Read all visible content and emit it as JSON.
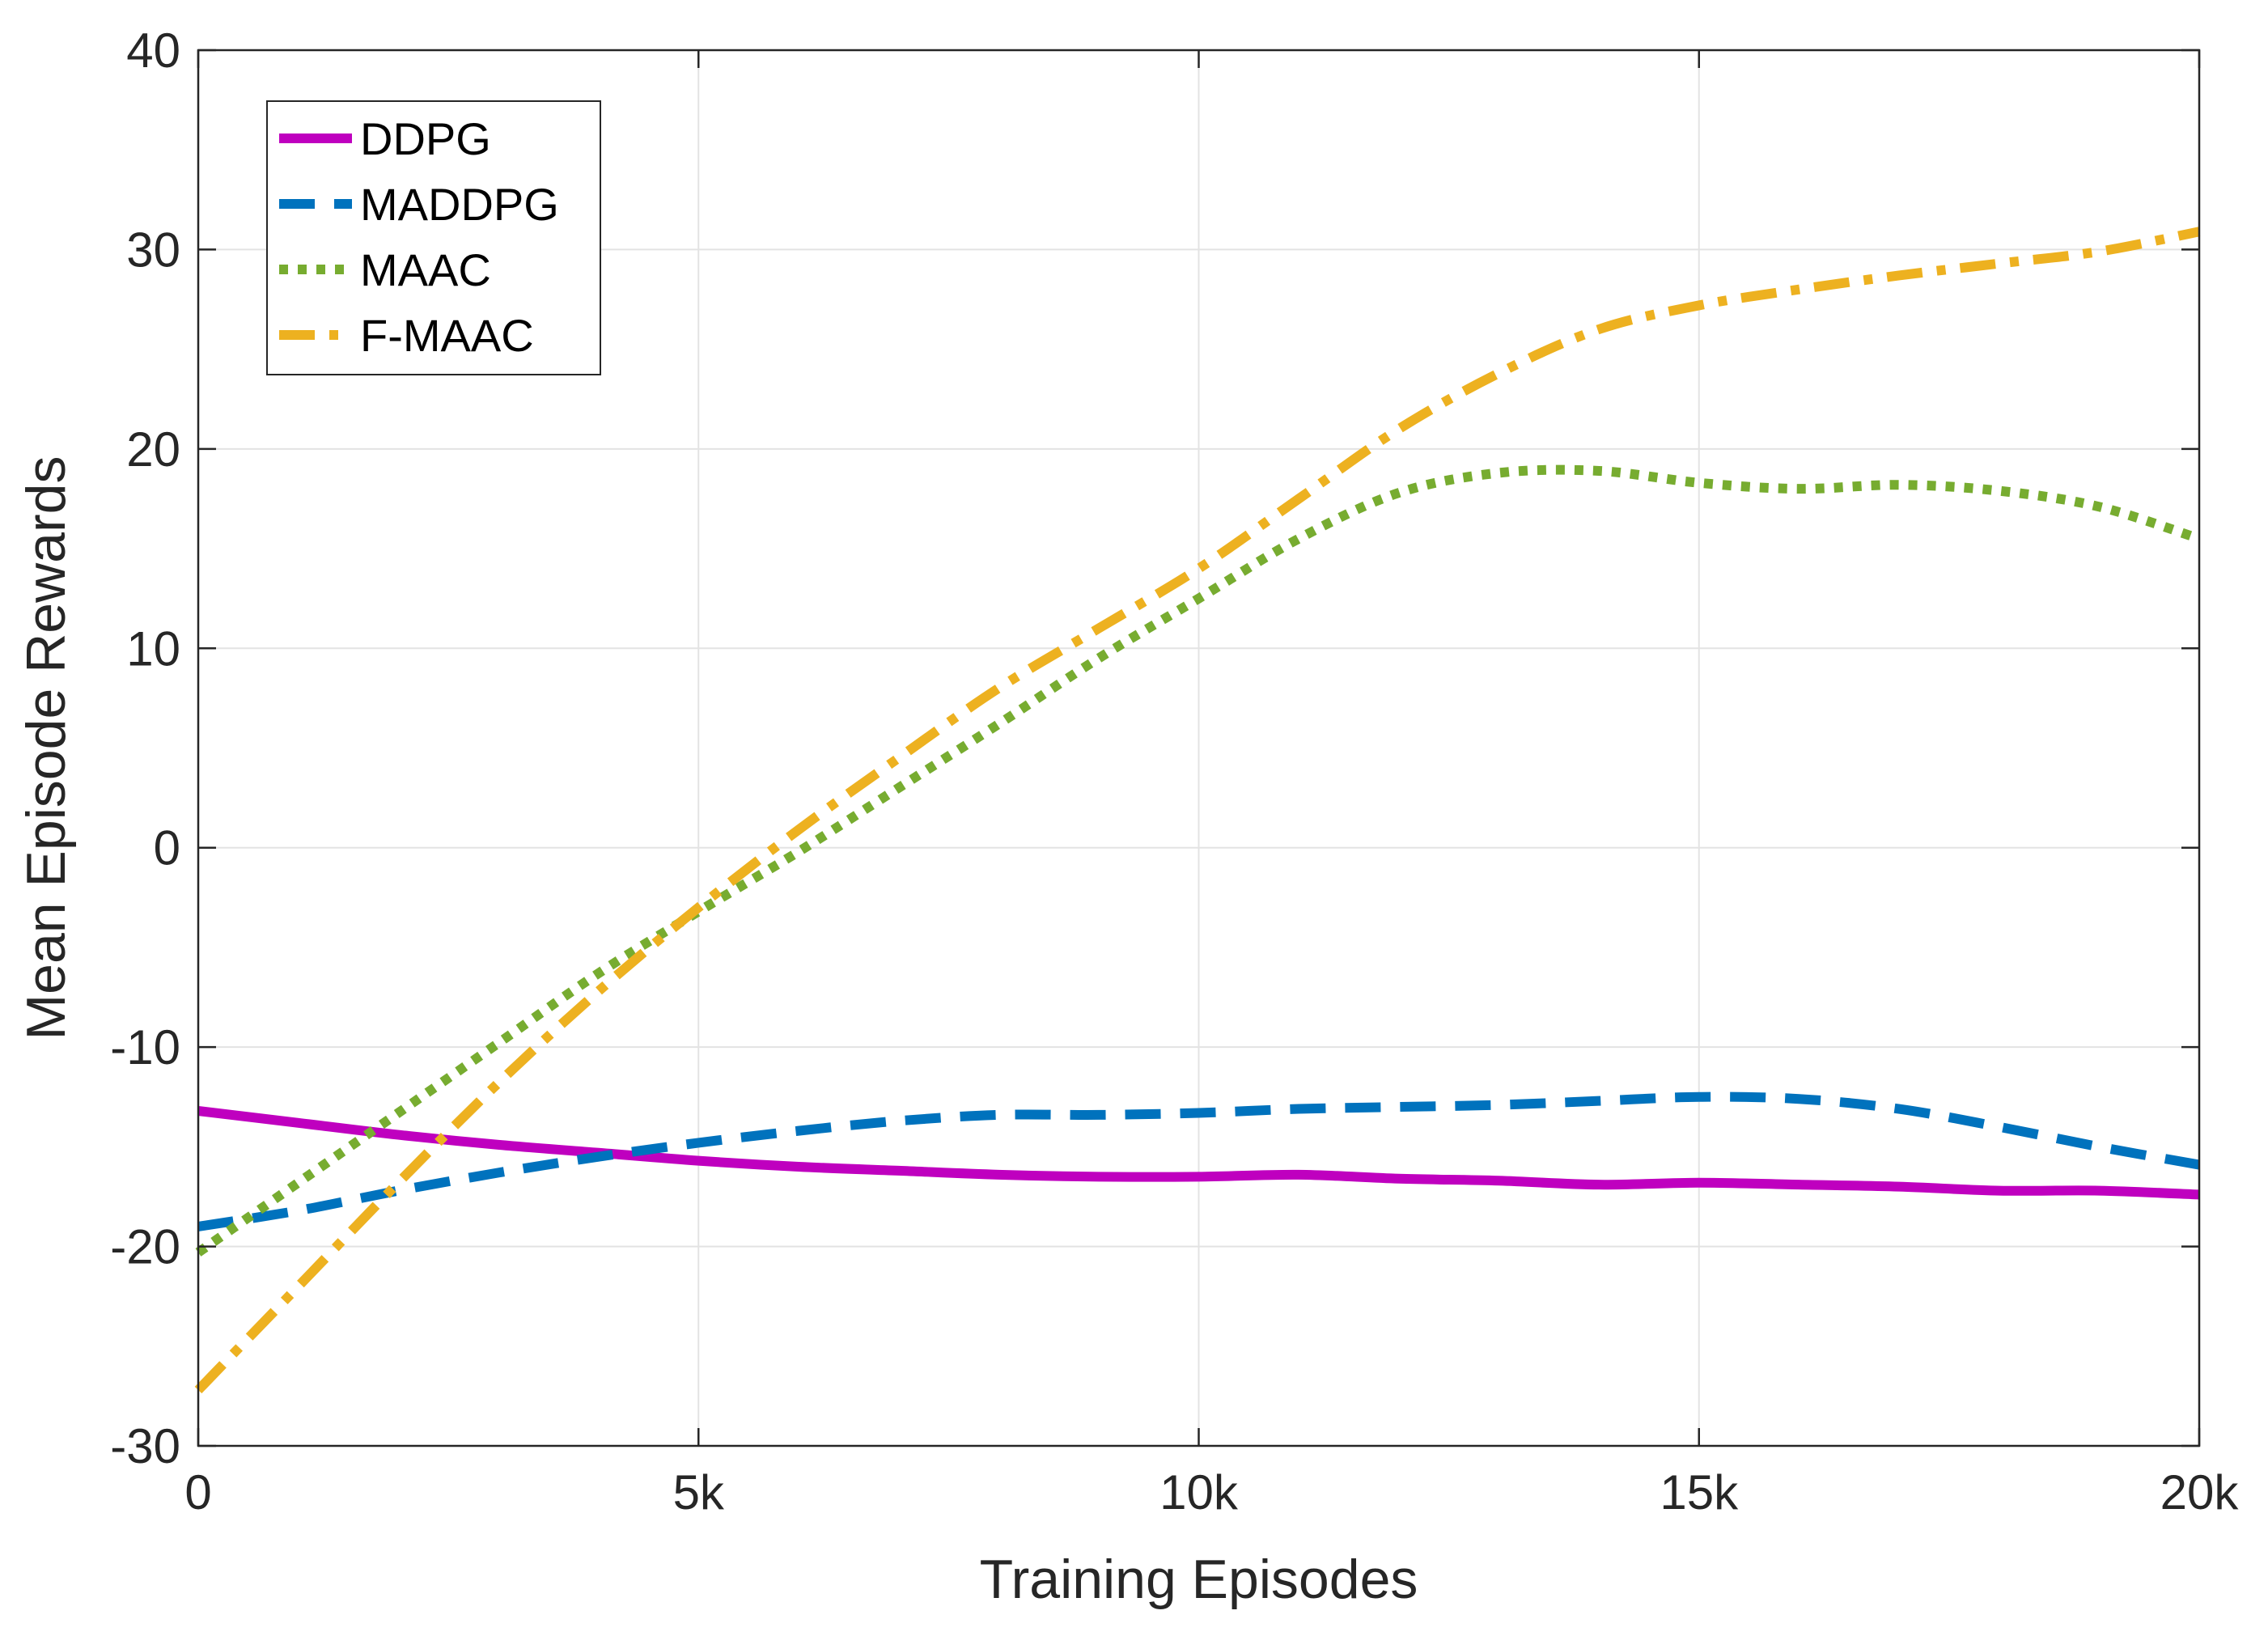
{
  "chart_data": {
    "type": "line",
    "xlabel": "Training Episodes",
    "ylabel": "Mean Episode Rewards",
    "xlim": [
      0,
      20000
    ],
    "ylim": [
      -30,
      40
    ],
    "grid": true,
    "legend_position": "top-left",
    "x_ticks": [
      0,
      5000,
      10000,
      15000,
      20000
    ],
    "x_tick_labels": [
      "0",
      "5k",
      "10k",
      "15k",
      "20k"
    ],
    "y_ticks": [
      -30,
      -20,
      -10,
      0,
      10,
      20,
      30,
      40
    ],
    "y_tick_labels": [
      "-30",
      "-20",
      "-10",
      "0",
      "10",
      "20",
      "30",
      "40"
    ],
    "x": [
      0,
      1000,
      2000,
      3000,
      4000,
      5000,
      6000,
      7000,
      8000,
      9000,
      10000,
      11000,
      12000,
      13000,
      14000,
      15000,
      16000,
      17000,
      18000,
      19000,
      20000
    ],
    "series": [
      {
        "name": "DDPG",
        "color": "#BF00BF",
        "style": "solid",
        "values": [
          -13.2,
          -13.8,
          -14.4,
          -14.9,
          -15.3,
          -15.7,
          -16.0,
          -16.2,
          -16.4,
          -16.5,
          -16.5,
          -16.4,
          -16.6,
          -16.7,
          -16.9,
          -16.8,
          -16.9,
          -17.0,
          -17.2,
          -17.2,
          -17.4
        ]
      },
      {
        "name": "MADDPG",
        "color": "#0072BD",
        "style": "dashed",
        "values": [
          -19.0,
          -18.2,
          -17.2,
          -16.3,
          -15.5,
          -14.8,
          -14.2,
          -13.7,
          -13.4,
          -13.4,
          -13.3,
          -13.1,
          -13.0,
          -12.9,
          -12.7,
          -12.5,
          -12.6,
          -13.1,
          -14.0,
          -15.0,
          -15.9
        ]
      },
      {
        "name": "MAAC",
        "color": "#77AC30",
        "style": "dotted",
        "values": [
          -20.3,
          -16.8,
          -13.3,
          -9.8,
          -6.3,
          -3.2,
          -0.2,
          3.0,
          6.2,
          9.5,
          12.5,
          15.5,
          17.8,
          18.8,
          18.9,
          18.3,
          18.0,
          18.2,
          17.9,
          17.1,
          15.5
        ]
      },
      {
        "name": "F-MAAC",
        "color": "#EDB120",
        "style": "dashdot",
        "values": [
          -27.2,
          -22.0,
          -16.8,
          -11.8,
          -7.2,
          -3.0,
          0.9,
          4.5,
          8.0,
          11.0,
          14.0,
          17.5,
          21.0,
          23.8,
          26.0,
          27.2,
          28.0,
          28.7,
          29.3,
          29.9,
          30.9
        ]
      }
    ]
  }
}
